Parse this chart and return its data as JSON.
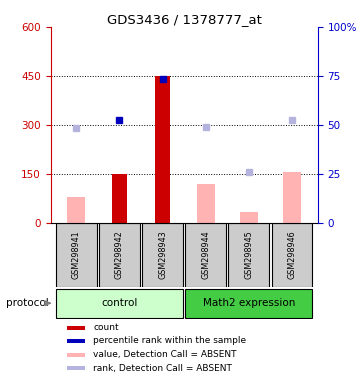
{
  "title": "GDS3436 / 1378777_at",
  "samples": [
    "GSM298941",
    "GSM298942",
    "GSM298943",
    "GSM298944",
    "GSM298945",
    "GSM298946"
  ],
  "bar_positions": [
    1,
    2,
    3,
    4,
    5,
    6
  ],
  "red_bars": [
    null,
    150,
    450,
    null,
    null,
    null
  ],
  "pink_bars": [
    80,
    null,
    null,
    120,
    35,
    155
  ],
  "blue_squares": [
    null,
    315,
    440,
    null,
    null,
    null
  ],
  "light_blue_squares": [
    290,
    null,
    null,
    293,
    155,
    315
  ],
  "ylim": [
    0,
    600
  ],
  "y2lim": [
    0,
    100
  ],
  "yticks": [
    0,
    150,
    300,
    450,
    600
  ],
  "y2ticks": [
    0,
    25,
    50,
    75,
    100
  ],
  "dotted_lines": [
    150,
    300,
    450
  ],
  "left_color": "#cc0000",
  "right_color": "#0000cc",
  "pink_color": "#ffb3b3",
  "light_blue_color": "#b3b3dd",
  "bar_width": 0.35,
  "pink_bar_width": 0.42,
  "legend_items": [
    {
      "color": "#cc0000",
      "label": "count"
    },
    {
      "color": "#0000bb",
      "label": "percentile rank within the sample"
    },
    {
      "color": "#ffb3b3",
      "label": "value, Detection Call = ABSENT"
    },
    {
      "color": "#b3b3dd",
      "label": "rank, Detection Call = ABSENT"
    }
  ],
  "protocol_label": "protocol",
  "group_spans": [
    {
      "label": "control",
      "x_start": 1,
      "x_end": 3,
      "color": "#ccffcc"
    },
    {
      "label": "Math2 expression",
      "x_start": 4,
      "x_end": 6,
      "color": "#44cc44"
    }
  ],
  "sample_box_color": "#cccccc",
  "xlim": [
    0.4,
    6.6
  ]
}
